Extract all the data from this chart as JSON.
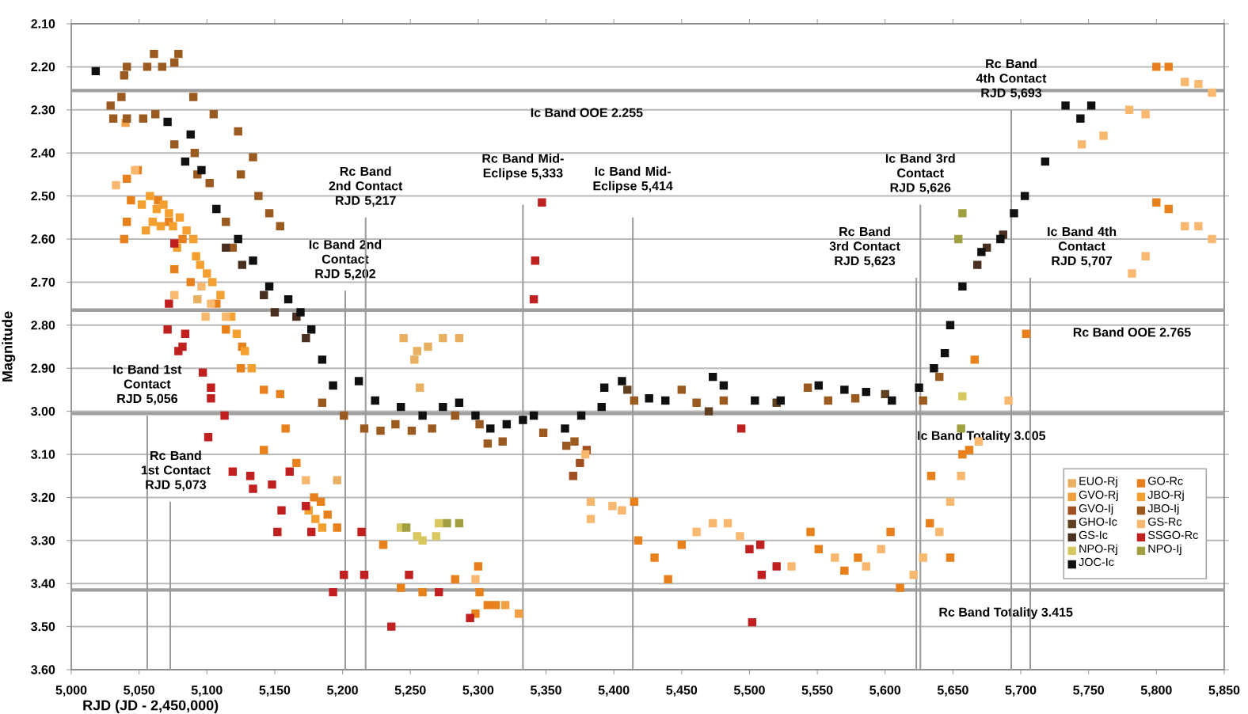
{
  "chart_data": {
    "type": "scatter",
    "xlabel": "RJD (JD - 2,450,000)",
    "ylabel": "Magnitude",
    "xlim": [
      5000,
      5850
    ],
    "ylim": [
      3.6,
      2.1
    ],
    "xticks": [
      {
        "value": 5000,
        "label": "5,000"
      },
      {
        "value": 5050,
        "label": "5,050"
      },
      {
        "value": 5100,
        "label": "5,100"
      },
      {
        "value": 5150,
        "label": "5,150"
      },
      {
        "value": 5200,
        "label": "5,200"
      },
      {
        "value": 5250,
        "label": "5,250"
      },
      {
        "value": 5300,
        "label": "5,300"
      },
      {
        "value": 5350,
        "label": "5,350"
      },
      {
        "value": 5400,
        "label": "5,400"
      },
      {
        "value": 5450,
        "label": "5,450"
      },
      {
        "value": 5500,
        "label": "5,500"
      },
      {
        "value": 5550,
        "label": "5,550"
      },
      {
        "value": 5600,
        "label": "5,600"
      },
      {
        "value": 5650,
        "label": "5,650"
      },
      {
        "value": 5700,
        "label": "5,700"
      },
      {
        "value": 5750,
        "label": "5,750"
      },
      {
        "value": 5800,
        "label": "5,800"
      },
      {
        "value": 5850,
        "label": "5,850"
      }
    ],
    "yticks": [
      {
        "value": 2.1,
        "label": "2.10"
      },
      {
        "value": 2.2,
        "label": "2.20"
      },
      {
        "value": 2.3,
        "label": "2.30"
      },
      {
        "value": 2.4,
        "label": "2.40"
      },
      {
        "value": 2.5,
        "label": "2.50"
      },
      {
        "value": 2.6,
        "label": "2.60"
      },
      {
        "value": 2.7,
        "label": "2.70"
      },
      {
        "value": 2.8,
        "label": "2.80"
      },
      {
        "value": 2.9,
        "label": "2.90"
      },
      {
        "value": 3.0,
        "label": "3.00"
      },
      {
        "value": 3.1,
        "label": "3.10"
      },
      {
        "value": 3.2,
        "label": "3.20"
      },
      {
        "value": 3.3,
        "label": "3.30"
      },
      {
        "value": 3.4,
        "label": "3.40"
      },
      {
        "value": 3.5,
        "label": "3.50"
      },
      {
        "value": 3.6,
        "label": "3.60"
      }
    ],
    "grid": "y",
    "legend": "right",
    "marker": "square",
    "ref_lines": [
      {
        "axis": "y",
        "value": 2.255,
        "label": "Ic Band OOE 2.255"
      },
      {
        "axis": "y",
        "value": 2.765,
        "label": "Rc Band OOE 2.765"
      },
      {
        "axis": "y",
        "value": 3.005,
        "label": "Ic Band Totality 3.005"
      },
      {
        "axis": "y",
        "value": 3.415,
        "label": "Rc Band Totality 3.415"
      },
      {
        "axis": "x",
        "value": 5056,
        "label": "Ic Band 1st Contact RJD 5,056"
      },
      {
        "axis": "x",
        "value": 5073,
        "label": "Rc Band 1st Contact RJD 5,073"
      },
      {
        "axis": "x",
        "value": 5202,
        "label": "Ic Band 2nd Contact RJD 5,202"
      },
      {
        "axis": "x",
        "value": 5217,
        "label": "Rc Band 2nd Contact RJD 5,217"
      },
      {
        "axis": "x",
        "value": 5333,
        "label": "Rc Band Mid-Eclipse 5,333"
      },
      {
        "axis": "x",
        "value": 5414,
        "label": "Ic Band Mid-Eclipse 5,414"
      },
      {
        "axis": "x",
        "value": 5623,
        "label": "Rc Band 3rd Contact RJD 5,623"
      },
      {
        "axis": "x",
        "value": 5626,
        "label": "Ic Band 3rd Contact RJD 5,626"
      },
      {
        "axis": "x",
        "value": 5693,
        "label": "Rc Band 4th Contact RJD 5,693"
      },
      {
        "axis": "x",
        "value": 5707,
        "label": "Ic Band 4th Contact RJD 5,707"
      }
    ],
    "series": [
      {
        "name": "EUO-Rj",
        "color": "#e8b060",
        "x": [
          5245,
          5255,
          5263,
          5274,
          5286,
          5196,
          5257,
          5253,
          5093
        ],
        "values": [
          2.83,
          2.86,
          2.85,
          2.83,
          2.83,
          3.16,
          2.945,
          2.88,
          2.74
        ]
      },
      {
        "name": "GO-Rc",
        "color": "#e8801c",
        "x": [
          5415,
          5418,
          5430,
          5440,
          5450,
          5545,
          5551,
          5570,
          5580,
          5604,
          5611,
          5633,
          5634,
          5648,
          5657,
          5662,
          5666,
          5704,
          5809,
          5800,
          5809,
          5800,
          5041,
          5049,
          5044,
          5064,
          5072,
          5082,
          5041,
          5039,
          5076,
          5088,
          5107,
          5114,
          5126,
          5125,
          5142,
          5154,
          5158,
          5142,
          5166,
          5179,
          5184,
          5189,
          5196,
          5230,
          5243,
          5259,
          5283,
          5300,
          5301,
          5307,
          5313,
          5298
        ],
        "values": [
          3.21,
          3.3,
          3.34,
          3.39,
          3.31,
          3.28,
          3.32,
          3.37,
          3.34,
          3.28,
          3.41,
          3.26,
          3.15,
          3.34,
          3.1,
          3.09,
          2.88,
          2.82,
          2.53,
          2.515,
          2.2,
          2.2,
          2.46,
          2.44,
          2.51,
          2.51,
          2.56,
          2.6,
          2.56,
          2.6,
          2.67,
          2.7,
          2.75,
          2.81,
          2.85,
          2.9,
          2.95,
          2.96,
          3.04,
          3.09,
          3.12,
          3.2,
          3.21,
          3.24,
          3.27,
          3.31,
          3.41,
          3.42,
          3.39,
          3.36,
          3.42,
          3.45,
          3.45,
          3.47
        ]
      },
      {
        "name": "GVO-Rj",
        "color": "#f0a040",
        "x": [
          5320,
          5330,
          5040
        ],
        "values": [
          3.45,
          3.47,
          2.33
        ]
      },
      {
        "name": "JBO-Rj",
        "color": "#f4a030",
        "x": [
          5052,
          5058,
          5063,
          5068,
          5072,
          5060,
          5066,
          5075,
          5080,
          5085,
          5090,
          5055,
          5078,
          5092,
          5095,
          5100,
          5104,
          5110,
          5118,
          5122,
          5128,
          5133,
          5175,
          5180,
          5185
        ],
        "values": [
          2.52,
          2.5,
          2.53,
          2.52,
          2.54,
          2.56,
          2.57,
          2.57,
          2.55,
          2.58,
          2.6,
          2.58,
          2.62,
          2.64,
          2.66,
          2.68,
          2.7,
          2.73,
          2.78,
          2.82,
          2.86,
          2.9,
          3.23,
          3.25,
          3.27
        ]
      },
      {
        "name": "GVO-Ij",
        "color": "#a05020",
        "x": [
          5370,
          5375,
          5380
        ],
        "values": [
          3.15,
          3.12,
          3.09
        ]
      },
      {
        "name": "JBO-Ij",
        "color": "#9a5a20",
        "x": [
          5041,
          5061,
          5056,
          5067,
          5076,
          5079,
          5039,
          5031,
          5041,
          5053,
          5062,
          5037,
          5029,
          5076,
          5091,
          5090,
          5093,
          5102,
          5114,
          5119,
          5138,
          5146,
          5154,
          5134,
          5125,
          5105,
          5123,
          5185,
          5201,
          5216,
          5228,
          5239,
          5251,
          5266,
          5283,
          5301,
          5307,
          5318,
          5348,
          5365,
          5371,
          5415,
          5450,
          5461,
          5481,
          5543,
          5558,
          5578,
          5628,
          5640
        ],
        "values": [
          2.2,
          2.17,
          2.2,
          2.2,
          2.19,
          2.17,
          2.22,
          2.32,
          2.32,
          2.32,
          2.31,
          2.27,
          2.29,
          2.38,
          2.4,
          2.27,
          2.45,
          2.47,
          2.56,
          2.62,
          2.5,
          2.54,
          2.57,
          2.41,
          2.45,
          2.31,
          2.35,
          2.98,
          3.01,
          3.04,
          3.045,
          3.03,
          3.045,
          3.04,
          3.01,
          3.03,
          3.075,
          3.07,
          3.05,
          3.08,
          3.07,
          2.975,
          2.95,
          2.98,
          2.975,
          2.945,
          2.975,
          2.97,
          2.975,
          2.92
        ]
      },
      {
        "name": "GHO-Ic",
        "color": "#604020",
        "x": [
          5410,
          5470,
          5520,
          5600
        ],
        "values": [
          2.95,
          3.0,
          2.98,
          2.96
        ]
      },
      {
        "name": "GS-Rc",
        "color": "#f8b870",
        "x": [
          5780,
          5792,
          5821,
          5831,
          5841,
          5792,
          5782,
          5745,
          5761,
          5821,
          5831,
          5841,
          5406,
          5461,
          5473,
          5484,
          5493,
          5531,
          5563,
          5586,
          5597,
          5621,
          5628,
          5640,
          5648,
          5656,
          5669,
          5691,
          5173,
          5383,
          5383,
          5399,
          5379,
          5298,
          5033,
          5047,
          5076,
          5096,
          5103,
          5099,
          5114
        ],
        "values": [
          2.3,
          2.31,
          2.57,
          2.57,
          2.6,
          2.64,
          2.68,
          2.38,
          2.36,
          2.235,
          2.24,
          2.26,
          3.23,
          3.28,
          3.26,
          3.26,
          3.29,
          3.36,
          3.34,
          3.36,
          3.32,
          3.38,
          3.34,
          3.28,
          3.21,
          3.15,
          3.07,
          2.975,
          3.16,
          3.21,
          3.25,
          3.22,
          3.1,
          3.39,
          2.475,
          2.44,
          2.73,
          2.71,
          2.75,
          2.78,
          2.78
        ]
      },
      {
        "name": "GS-Ic",
        "color": "#4a3020",
        "x": [
          5114,
          5126,
          5142,
          5150,
          5166,
          5173,
          5668,
          5675,
          5687
        ],
        "values": [
          2.62,
          2.66,
          2.73,
          2.77,
          2.78,
          2.83,
          2.66,
          2.62,
          2.59
        ]
      },
      {
        "name": "SSGO-Rc",
        "color": "#c02020",
        "x": [
          5076,
          5072,
          5071,
          5084,
          5082,
          5079,
          5097,
          5103,
          5103,
          5113,
          5101,
          5119,
          5132,
          5134,
          5148,
          5161,
          5155,
          5152,
          5173,
          5177,
          5193,
          5201,
          5216,
          5214,
          5236,
          5249,
          5271,
          5294,
          5347,
          5342,
          5341,
          5494,
          5500,
          5508,
          5509,
          5520,
          5502
        ],
        "values": [
          2.61,
          2.75,
          2.81,
          2.82,
          2.85,
          2.86,
          2.91,
          2.945,
          2.97,
          3.01,
          3.06,
          3.14,
          3.15,
          3.18,
          3.17,
          3.14,
          3.23,
          3.28,
          3.22,
          3.28,
          3.42,
          3.38,
          3.38,
          3.28,
          3.5,
          3.38,
          3.42,
          3.48,
          2.515,
          2.65,
          2.74,
          3.04,
          3.32,
          3.31,
          3.38,
          3.36,
          3.49
        ]
      },
      {
        "name": "NPO-Rj",
        "color": "#d8c860",
        "x": [
          5243,
          5255,
          5259,
          5271,
          5269,
          5657
        ],
        "values": [
          3.27,
          3.29,
          3.3,
          3.26,
          3.29,
          2.965
        ]
      },
      {
        "name": "NPO-Ij",
        "color": "#a0a040",
        "x": [
          5247,
          5277,
          5286,
          5657,
          5654,
          5656
        ],
        "values": [
          3.27,
          3.26,
          3.26,
          2.54,
          2.6,
          3.04
        ]
      },
      {
        "name": "JOC-Ic",
        "color": "#101010",
        "x": [
          5018,
          5071,
          5088,
          5084,
          5096,
          5107,
          5123,
          5134,
          5146,
          5160,
          5169,
          5177,
          5185,
          5193,
          5212,
          5224,
          5243,
          5259,
          5274,
          5286,
          5298,
          5309,
          5321,
          5333,
          5341,
          5364,
          5376,
          5391,
          5393,
          5406,
          5426,
          5438,
          5473,
          5481,
          5504,
          5523,
          5551,
          5570,
          5586,
          5605,
          5625,
          5636,
          5644,
          5648,
          5657,
          5671,
          5685,
          5695,
          5703,
          5718,
          5744,
          5733,
          5752
        ],
        "values": [
          2.21,
          2.328,
          2.357,
          2.42,
          2.44,
          2.53,
          2.6,
          2.65,
          2.71,
          2.74,
          2.77,
          2.81,
          2.88,
          2.94,
          2.93,
          2.975,
          2.99,
          3.01,
          2.99,
          2.98,
          3.01,
          3.04,
          3.03,
          3.02,
          3.01,
          3.04,
          3.01,
          2.99,
          2.945,
          2.93,
          2.97,
          2.975,
          2.92,
          2.94,
          2.975,
          2.975,
          2.94,
          2.95,
          2.955,
          2.975,
          2.945,
          2.9,
          2.865,
          2.8,
          2.71,
          2.63,
          2.6,
          2.54,
          2.5,
          2.42,
          2.32,
          2.29,
          2.29
        ]
      }
    ]
  }
}
